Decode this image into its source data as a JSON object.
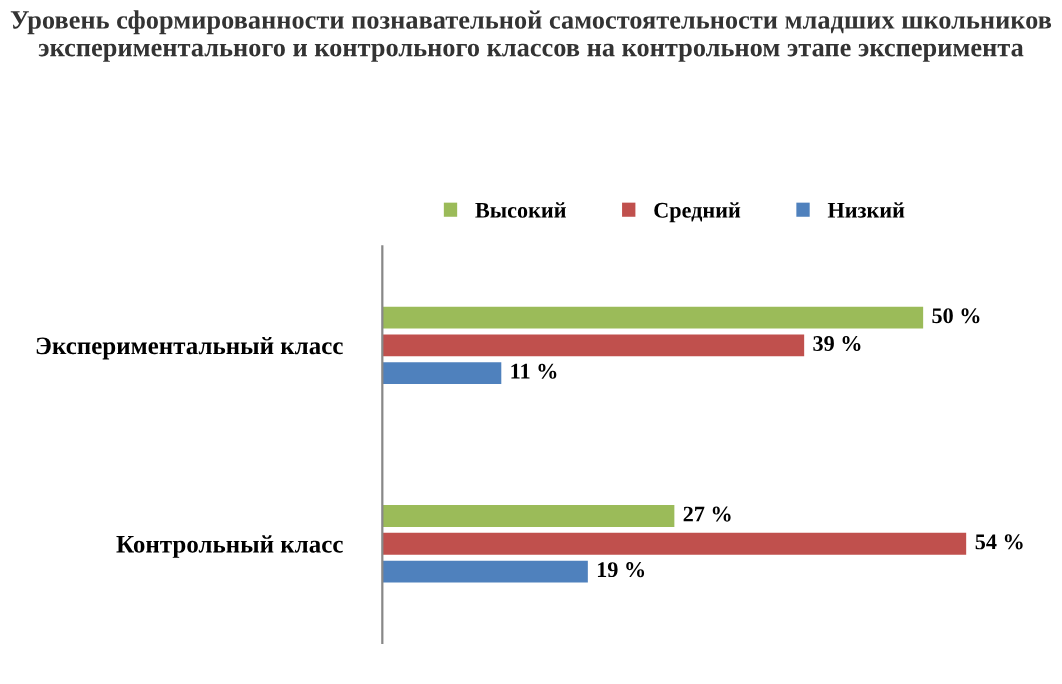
{
  "chart_data": {
    "type": "bar",
    "orientation": "horizontal",
    "title": "Уровень сформированности познавательной самостоятельности младших школьников экспериментального и контрольного классов на контрольном этапе эксперимента",
    "categories": [
      "Экспериментальный класс",
      "Контрольный класс"
    ],
    "series": [
      {
        "name": "Высокий",
        "color": "#9bbb59",
        "values": [
          50,
          27
        ],
        "value_labels": [
          "50 %",
          "27 %"
        ]
      },
      {
        "name": "Средний",
        "color": "#c0504d",
        "values": [
          39,
          54
        ],
        "value_labels": [
          "39 %",
          "54 %"
        ]
      },
      {
        "name": "Низкий",
        "color": "#4f81bd",
        "values": [
          11,
          19
        ],
        "value_labels": [
          "11 %",
          "19 %"
        ]
      }
    ],
    "legend": "top",
    "grid": false
  }
}
